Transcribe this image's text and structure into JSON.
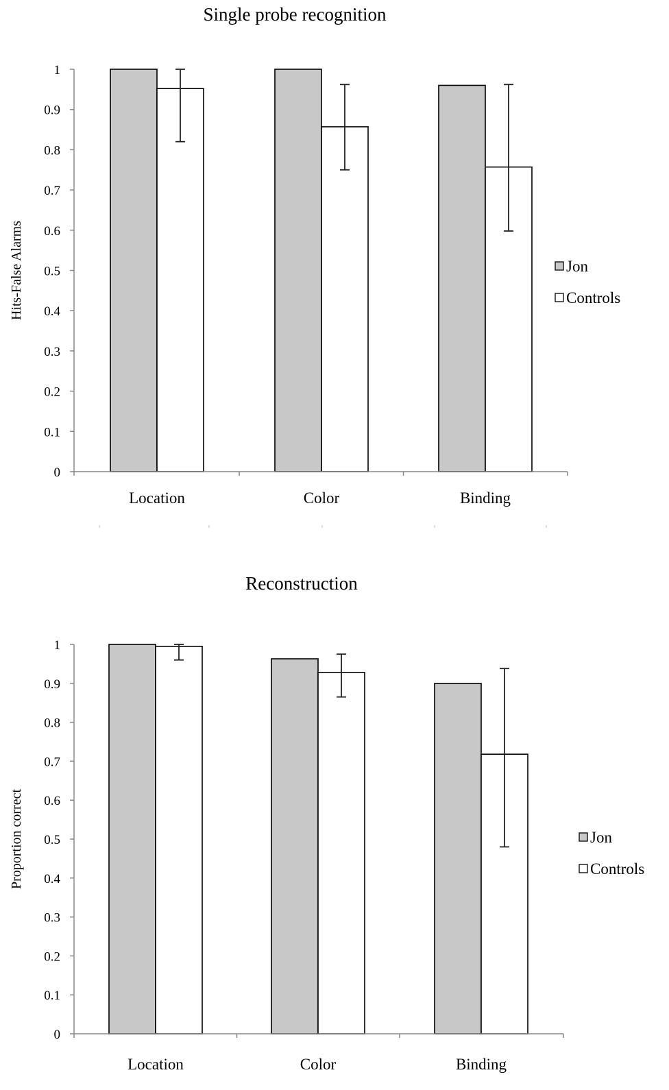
{
  "chart_data": [
    {
      "type": "bar",
      "title": "Single probe recognition",
      "ylabel": "Hits-False Alarms",
      "xlabel": "",
      "categories": [
        "Location",
        "Color",
        "Binding"
      ],
      "ylim": [
        0,
        1
      ],
      "yticks": [
        "0",
        "0.1",
        "0.2",
        "0.3",
        "0.4",
        "0.5",
        "0.6",
        "0.7",
        "0.8",
        "0.9",
        "1"
      ],
      "grid": false,
      "legend_position": "right",
      "series": [
        {
          "name": "Jon",
          "color": "#c8c8c8",
          "values": [
            1.0,
            1.0,
            0.96
          ]
        },
        {
          "name": "Controls",
          "color": "#ffffff",
          "values": [
            0.952,
            0.857,
            0.757
          ],
          "error_low": [
            0.82,
            0.75,
            0.598
          ],
          "error_high": [
            1.0,
            0.962,
            0.962
          ]
        }
      ]
    },
    {
      "type": "bar",
      "title": "Reconstruction",
      "ylabel": "Proportion correct",
      "xlabel": "",
      "categories": [
        "Location",
        "Color",
        "Binding"
      ],
      "ylim": [
        0,
        1
      ],
      "yticks": [
        "0",
        "0.1",
        "0.2",
        "0.3",
        "0.4",
        "0.5",
        "0.6",
        "0.7",
        "0.8",
        "0.9",
        "1"
      ],
      "grid": false,
      "legend_position": "right",
      "series": [
        {
          "name": "Jon",
          "color": "#c8c8c8",
          "values": [
            1.0,
            0.963,
            0.9
          ]
        },
        {
          "name": "Controls",
          "color": "#ffffff",
          "values": [
            0.995,
            0.928,
            0.718
          ],
          "error_low": [
            0.96,
            0.865,
            0.48
          ],
          "error_high": [
            1.0,
            0.975,
            0.938
          ]
        }
      ]
    }
  ]
}
